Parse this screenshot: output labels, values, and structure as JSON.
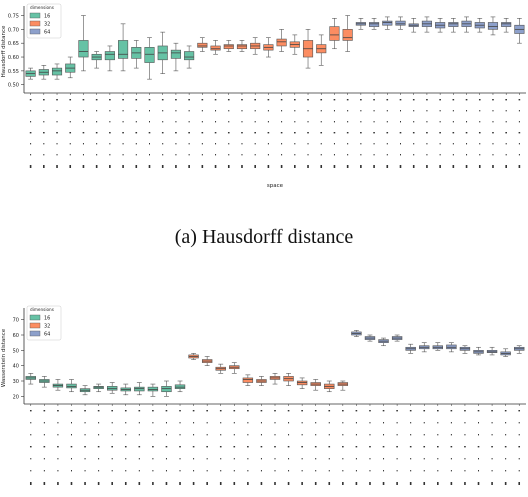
{
  "captions": {
    "top": "(a) Hausdorff distance",
    "bottom": ""
  },
  "chart_data": [
    {
      "type": "box",
      "ylabel": "Hausdorff distance",
      "xlabel": "space",
      "ylim": [
        0.47,
        0.77
      ],
      "yticks": [
        "0.50",
        "0.55",
        "0.60",
        "0.65",
        "0.70",
        "0.75"
      ],
      "legend": {
        "title": "dimensions",
        "placement": "top-left",
        "entries": [
          "16",
          "32",
          "64"
        ]
      },
      "series": [
        {
          "name": "16",
          "color": "#66c2a5",
          "boxes": [
            [
              0.52,
              0.53,
              0.54,
              0.55,
              0.56
            ],
            [
              0.52,
              0.535,
              0.545,
              0.555,
              0.57
            ],
            [
              0.52,
              0.535,
              0.55,
              0.56,
              0.575
            ],
            [
              0.525,
              0.545,
              0.56,
              0.575,
              0.6
            ],
            [
              0.55,
              0.6,
              0.62,
              0.66,
              0.75
            ],
            [
              0.56,
              0.59,
              0.6,
              0.61,
              0.62
            ],
            [
              0.55,
              0.59,
              0.61,
              0.62,
              0.64
            ],
            [
              0.55,
              0.595,
              0.61,
              0.66,
              0.72
            ],
            [
              0.56,
              0.595,
              0.615,
              0.635,
              0.66
            ],
            [
              0.52,
              0.58,
              0.61,
              0.635,
              0.67
            ],
            [
              0.54,
              0.59,
              0.615,
              0.64,
              0.69
            ],
            [
              0.55,
              0.595,
              0.615,
              0.625,
              0.65
            ],
            [
              0.56,
              0.59,
              0.6,
              0.62,
              0.64
            ]
          ]
        },
        {
          "name": "32",
          "color": "#fc8d62",
          "boxes": [
            [
              0.62,
              0.635,
              0.64,
              0.65,
              0.67
            ],
            [
              0.61,
              0.625,
              0.63,
              0.64,
              0.66
            ],
            [
              0.62,
              0.63,
              0.64,
              0.645,
              0.66
            ],
            [
              0.62,
              0.63,
              0.64,
              0.645,
              0.66
            ],
            [
              0.61,
              0.63,
              0.64,
              0.65,
              0.67
            ],
            [
              0.6,
              0.625,
              0.635,
              0.645,
              0.67
            ],
            [
              0.62,
              0.64,
              0.655,
              0.665,
              0.7
            ],
            [
              0.61,
              0.635,
              0.645,
              0.655,
              0.68
            ],
            [
              0.56,
              0.6,
              0.63,
              0.66,
              0.7
            ],
            [
              0.57,
              0.615,
              0.63,
              0.645,
              0.68
            ],
            [
              0.63,
              0.66,
              0.68,
              0.71,
              0.74
            ],
            [
              0.62,
              0.66,
              0.67,
              0.7,
              0.75
            ]
          ]
        },
        {
          "name": "64",
          "color": "#8da0cb",
          "boxes": [
            [
              0.7,
              0.715,
              0.72,
              0.725,
              0.74
            ],
            [
              0.7,
              0.71,
              0.72,
              0.725,
              0.74
            ],
            [
              0.7,
              0.715,
              0.725,
              0.73,
              0.745
            ],
            [
              0.7,
              0.715,
              0.72,
              0.73,
              0.745
            ],
            [
              0.69,
              0.71,
              0.715,
              0.72,
              0.74
            ],
            [
              0.69,
              0.71,
              0.72,
              0.73,
              0.745
            ],
            [
              0.69,
              0.705,
              0.715,
              0.725,
              0.74
            ],
            [
              0.69,
              0.71,
              0.72,
              0.725,
              0.74
            ],
            [
              0.69,
              0.71,
              0.72,
              0.73,
              0.745
            ],
            [
              0.69,
              0.705,
              0.715,
              0.725,
              0.74
            ],
            [
              0.68,
              0.7,
              0.71,
              0.725,
              0.745
            ],
            [
              0.69,
              0.71,
              0.72,
              0.725,
              0.74
            ],
            [
              0.65,
              0.685,
              0.7,
              0.715,
              0.74
            ]
          ]
        }
      ]
    },
    {
      "type": "box",
      "ylabel": "Wasserstein distance",
      "xlabel": "",
      "ylim": [
        15,
        75
      ],
      "yticks": [
        "20",
        "30",
        "40",
        "50",
        "60",
        "70"
      ],
      "legend": {
        "title": "dimensions",
        "placement": "top-left",
        "entries": [
          "16",
          "32",
          "64"
        ]
      },
      "series": [
        {
          "name": "16",
          "color": "#66c2a5",
          "boxes": [
            [
              28,
              31,
              32,
              33,
              35
            ],
            [
              26,
              29,
              30,
              31,
              33
            ],
            [
              24,
              26,
              27,
              28,
              31
            ],
            [
              23,
              25.5,
              26.5,
              28,
              31
            ],
            [
              21,
              23,
              24,
              25,
              27
            ],
            [
              23,
              25,
              26,
              26.5,
              28
            ],
            [
              22,
              24,
              25,
              26.5,
              29
            ],
            [
              21,
              23.5,
              24.5,
              25.5,
              28
            ],
            [
              21,
              23.5,
              25,
              26,
              29
            ],
            [
              20,
              23.5,
              24.5,
              26,
              28
            ],
            [
              20,
              23,
              25,
              26.5,
              30
            ],
            [
              23,
              25,
              26,
              27.5,
              30
            ]
          ]
        },
        {
          "name": "32",
          "color": "#fc8d62",
          "boxes": [
            [
              44,
              45,
              46,
              47,
              48
            ],
            [
              40,
              42,
              43,
              44,
              46
            ],
            [
              35,
              37,
              38,
              39,
              41
            ],
            [
              35,
              38,
              39,
              40,
              42
            ],
            [
              27,
              29,
              31,
              32,
              34
            ],
            [
              27,
              29,
              30,
              31,
              33
            ],
            [
              28,
              31,
              32,
              33,
              35
            ],
            [
              27,
              30,
              31.5,
              33,
              35
            ],
            [
              25,
              27.5,
              29,
              30,
              32
            ],
            [
              24,
              27,
              28,
              29,
              31
            ],
            [
              23,
              25,
              26.5,
              28,
              30
            ],
            [
              24,
              27,
              28,
              29,
              30
            ]
          ]
        },
        {
          "name": "64",
          "color": "#8da0cb",
          "boxes": [
            [
              59,
              60,
              61,
              62,
              63
            ],
            [
              56,
              57,
              58,
              59,
              60
            ],
            [
              53,
              55,
              56,
              57,
              58
            ],
            [
              56,
              57,
              58,
              59,
              60
            ],
            [
              48,
              50,
              51,
              52,
              54
            ],
            [
              49,
              51,
              52,
              53,
              55
            ],
            [
              50,
              51,
              52,
              53,
              55
            ],
            [
              49,
              51,
              52,
              53.5,
              55
            ],
            [
              48,
              50,
              51,
              52,
              53
            ],
            [
              47,
              48,
              49,
              50,
              52
            ],
            [
              47,
              48.5,
              49,
              50,
              52
            ],
            [
              46,
              47,
              48,
              49,
              51
            ],
            [
              48,
              50,
              51,
              52,
              53
            ]
          ]
        }
      ]
    }
  ]
}
